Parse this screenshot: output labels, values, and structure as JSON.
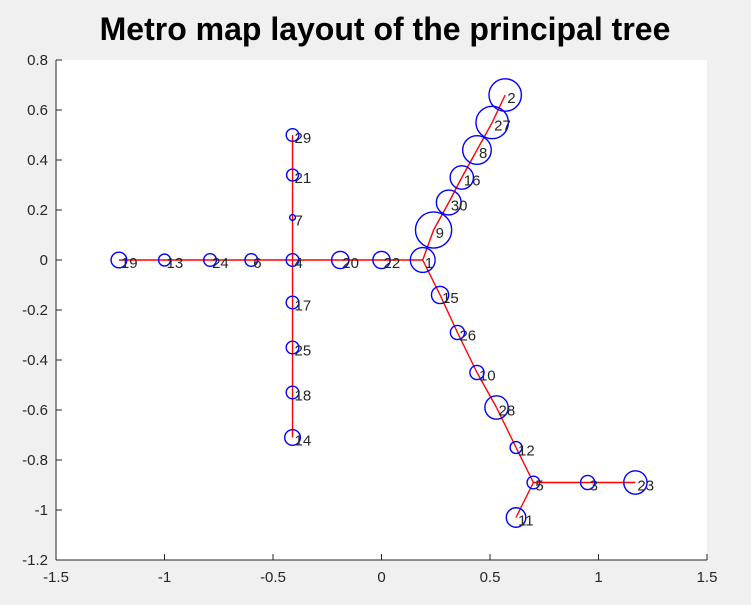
{
  "chart_data": {
    "type": "scatter",
    "title": "Metro map layout of the principal tree",
    "xlabel": "",
    "ylabel": "",
    "xlim": [
      -1.5,
      1.5
    ],
    "ylim": [
      -1.2,
      0.8
    ],
    "xticks": [
      -1.5,
      -1,
      -0.5,
      0,
      0.5,
      1,
      1.5
    ],
    "xtick_labels": [
      "-1.5",
      "-1",
      "-0.5",
      "0",
      "0.5",
      "1",
      "1.5"
    ],
    "yticks": [
      0.8,
      0.6,
      0.4,
      0.2,
      0,
      -0.2,
      -0.4,
      -0.6,
      -0.8,
      -1,
      -1.2
    ],
    "ytick_labels": [
      "0.8",
      "0.6",
      "0.4",
      "0.2",
      "0",
      "-0.2",
      "-0.4",
      "-0.6",
      "-0.8",
      "-1",
      "-1.2"
    ],
    "grid": false,
    "edge_color": "#ff0000",
    "node_color": "#0000ff",
    "nodes": [
      {
        "label": "1",
        "x": 0.19,
        "y": 0.0,
        "size": 3.0
      },
      {
        "label": "2",
        "x": 0.57,
        "y": 0.66,
        "size": 4.0
      },
      {
        "label": "3",
        "x": 0.95,
        "y": -0.89,
        "size": 1.6
      },
      {
        "label": "4",
        "x": -0.41,
        "y": 0.0,
        "size": 1.4
      },
      {
        "label": "5",
        "x": 0.7,
        "y": -0.89,
        "size": 1.4
      },
      {
        "label": "6",
        "x": -0.6,
        "y": 0.0,
        "size": 1.4
      },
      {
        "label": "7",
        "x": -0.41,
        "y": 0.17,
        "size": 0.5
      },
      {
        "label": "8",
        "x": 0.44,
        "y": 0.44,
        "size": 3.5
      },
      {
        "label": "9",
        "x": 0.24,
        "y": 0.12,
        "size": 4.5
      },
      {
        "label": "10",
        "x": 0.44,
        "y": -0.45,
        "size": 1.6
      },
      {
        "label": "11",
        "x": 0.62,
        "y": -1.03,
        "size": 2.3
      },
      {
        "label": "12",
        "x": 0.62,
        "y": -0.75,
        "size": 1.3
      },
      {
        "label": "13",
        "x": -1.0,
        "y": 0.0,
        "size": 1.3
      },
      {
        "label": "14",
        "x": -0.41,
        "y": -0.71,
        "size": 1.8
      },
      {
        "label": "15",
        "x": 0.27,
        "y": -0.14,
        "size": 2.0
      },
      {
        "label": "16",
        "x": 0.37,
        "y": 0.33,
        "size": 2.8
      },
      {
        "label": "17",
        "x": -0.41,
        "y": -0.17,
        "size": 1.4
      },
      {
        "label": "18",
        "x": -0.41,
        "y": -0.53,
        "size": 1.4
      },
      {
        "label": "19",
        "x": -1.21,
        "y": 0.0,
        "size": 1.8
      },
      {
        "label": "20",
        "x": -0.19,
        "y": 0.0,
        "size": 2.0
      },
      {
        "label": "21",
        "x": -0.41,
        "y": 0.34,
        "size": 1.3
      },
      {
        "label": "22",
        "x": 0.0,
        "y": 0.0,
        "size": 2.0
      },
      {
        "label": "23",
        "x": 1.17,
        "y": -0.89,
        "size": 2.8
      },
      {
        "label": "24",
        "x": -0.79,
        "y": 0.0,
        "size": 1.4
      },
      {
        "label": "25",
        "x": -0.41,
        "y": -0.35,
        "size": 1.4
      },
      {
        "label": "26",
        "x": 0.35,
        "y": -0.29,
        "size": 1.6
      },
      {
        "label": "27",
        "x": 0.51,
        "y": 0.55,
        "size": 4.0
      },
      {
        "label": "28",
        "x": 0.53,
        "y": -0.59,
        "size": 2.8
      },
      {
        "label": "29",
        "x": -0.41,
        "y": 0.5,
        "size": 1.4
      },
      {
        "label": "30",
        "x": 0.31,
        "y": 0.23,
        "size": 3.0
      }
    ],
    "edges": [
      [
        "19",
        "13"
      ],
      [
        "13",
        "24"
      ],
      [
        "24",
        "6"
      ],
      [
        "6",
        "4"
      ],
      [
        "4",
        "20"
      ],
      [
        "20",
        "22"
      ],
      [
        "22",
        "1"
      ],
      [
        "29",
        "21"
      ],
      [
        "21",
        "7"
      ],
      [
        "7",
        "4"
      ],
      [
        "4",
        "17"
      ],
      [
        "17",
        "25"
      ],
      [
        "25",
        "18"
      ],
      [
        "18",
        "14"
      ],
      [
        "1",
        "9"
      ],
      [
        "9",
        "30"
      ],
      [
        "30",
        "16"
      ],
      [
        "16",
        "8"
      ],
      [
        "8",
        "27"
      ],
      [
        "27",
        "2"
      ],
      [
        "1",
        "15"
      ],
      [
        "15",
        "26"
      ],
      [
        "26",
        "10"
      ],
      [
        "10",
        "28"
      ],
      [
        "28",
        "12"
      ],
      [
        "12",
        "5"
      ],
      [
        "5",
        "3"
      ],
      [
        "3",
        "23"
      ],
      [
        "5",
        "11"
      ]
    ]
  }
}
